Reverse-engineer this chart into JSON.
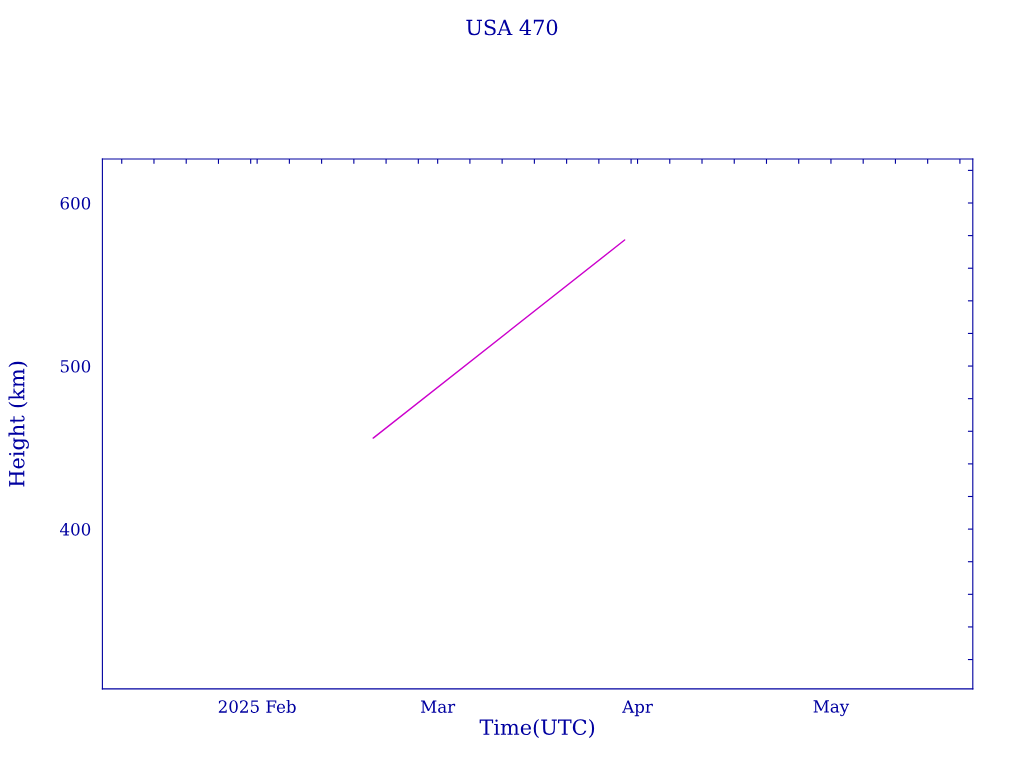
{
  "chart_data": {
    "type": "line",
    "title": "USA 470",
    "xlabel": "Time(UTC)",
    "ylabel": "Height (km)",
    "x": [
      "2025-02-19",
      "2025-03-30"
    ],
    "series": [
      {
        "color": "#cc00cc",
        "values": [
          455.8,
          577.3
        ]
      }
    ],
    "xlim": [
      "2025-01-08",
      "2025-05-23"
    ],
    "xticks": [
      {
        "value": "2025-01-11",
        "label": null
      },
      {
        "value": "2025-01-16",
        "label": null
      },
      {
        "value": "2025-01-21",
        "label": null
      },
      {
        "value": "2025-01-26",
        "label": null
      },
      {
        "value": "2025-01-31",
        "label": null
      },
      {
        "value": "2025-02-01",
        "label": "2025 Feb"
      },
      {
        "value": "2025-02-06",
        "label": null
      },
      {
        "value": "2025-02-11",
        "label": null
      },
      {
        "value": "2025-02-16",
        "label": null
      },
      {
        "value": "2025-02-21",
        "label": null
      },
      {
        "value": "2025-02-26",
        "label": null
      },
      {
        "value": "2025-03-01",
        "label": "Mar"
      },
      {
        "value": "2025-03-06",
        "label": null
      },
      {
        "value": "2025-03-11",
        "label": null
      },
      {
        "value": "2025-03-16",
        "label": null
      },
      {
        "value": "2025-03-21",
        "label": null
      },
      {
        "value": "2025-03-26",
        "label": null
      },
      {
        "value": "2025-03-31",
        "label": null
      },
      {
        "value": "2025-04-01",
        "label": "Apr"
      },
      {
        "value": "2025-04-06",
        "label": null
      },
      {
        "value": "2025-04-11",
        "label": null
      },
      {
        "value": "2025-04-16",
        "label": null
      },
      {
        "value": "2025-04-21",
        "label": null
      },
      {
        "value": "2025-04-26",
        "label": null
      },
      {
        "value": "2025-05-01",
        "label": "May"
      },
      {
        "value": "2025-05-06",
        "label": null
      },
      {
        "value": "2025-05-11",
        "label": null
      },
      {
        "value": "2025-05-16",
        "label": null
      },
      {
        "value": "2025-05-21",
        "label": null
      }
    ],
    "ylim": [
      302,
      627
    ],
    "yticks": [
      {
        "value": 320,
        "label": null
      },
      {
        "value": 340,
        "label": null
      },
      {
        "value": 360,
        "label": null
      },
      {
        "value": 380,
        "label": null
      },
      400,
      {
        "value": 420,
        "label": null
      },
      {
        "value": 440,
        "label": null
      },
      {
        "value": 460,
        "label": null
      },
      {
        "value": 480,
        "label": null
      },
      500,
      {
        "value": 520,
        "label": null
      },
      {
        "value": 540,
        "label": null
      },
      {
        "value": 560,
        "label": null
      },
      {
        "value": 580,
        "label": null
      },
      600,
      {
        "value": 620,
        "label": null
      }
    ],
    "grid": false,
    "legend": false,
    "line_style": "solid"
  }
}
